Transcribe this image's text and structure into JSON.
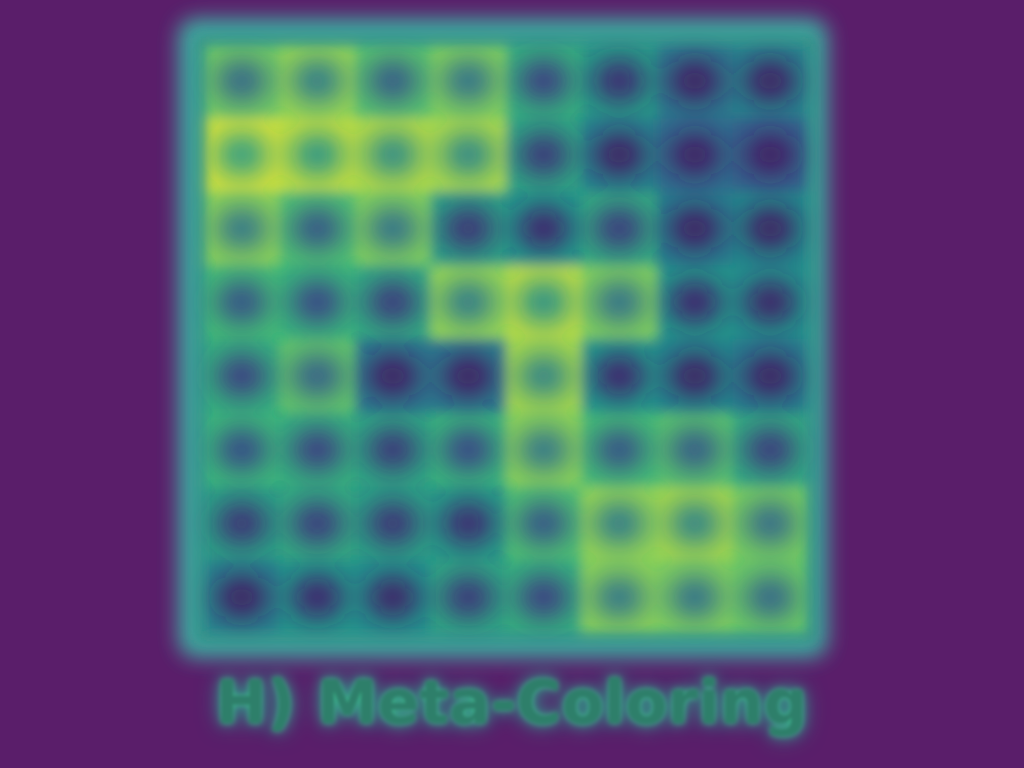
{
  "caption": "H) Meta-Coloring",
  "colors": {
    "background": "#5a1e6a",
    "frame": "#2a7a72",
    "glow": "#3bc0a8",
    "palette": [
      "#45135e",
      "#3b3c86",
      "#2f6a8e",
      "#21918c",
      "#3cb879",
      "#8fd256",
      "#d0e03a"
    ]
  },
  "grid": {
    "rows": 8,
    "cols": 8,
    "values": [
      [
        0.55,
        0.62,
        0.5,
        0.58,
        0.4,
        0.32,
        0.18,
        0.22
      ],
      [
        0.78,
        0.74,
        0.7,
        0.68,
        0.36,
        0.22,
        0.14,
        0.1
      ],
      [
        0.6,
        0.48,
        0.58,
        0.34,
        0.3,
        0.38,
        0.2,
        0.24
      ],
      [
        0.46,
        0.42,
        0.38,
        0.62,
        0.72,
        0.58,
        0.3,
        0.28
      ],
      [
        0.4,
        0.52,
        0.18,
        0.18,
        0.66,
        0.3,
        0.24,
        0.2
      ],
      [
        0.44,
        0.4,
        0.36,
        0.42,
        0.6,
        0.46,
        0.5,
        0.38
      ],
      [
        0.34,
        0.38,
        0.34,
        0.32,
        0.48,
        0.62,
        0.66,
        0.56
      ],
      [
        0.22,
        0.3,
        0.28,
        0.36,
        0.4,
        0.6,
        0.58,
        0.54
      ]
    ]
  }
}
